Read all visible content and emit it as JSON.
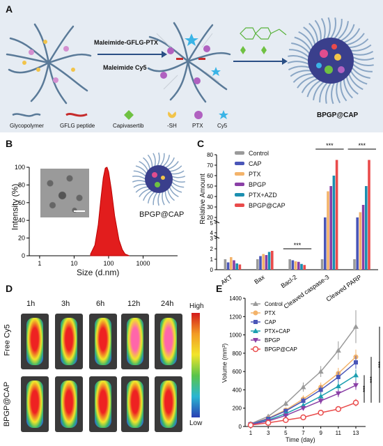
{
  "panelA": {
    "label": "A",
    "arrow1_top": "Maleimide-GFLG-PTX",
    "arrow1_bottom": "Maleimide Cy5",
    "product": "BPGP@CAP",
    "legend": [
      "Glycopolymer",
      "GFLG peptide",
      "Capivasertib",
      "-SH",
      "PTX",
      "Cy5"
    ]
  },
  "panelB": {
    "label": "B",
    "ylabel": "Intensity (%)",
    "xlabel": "Size (d.nm)",
    "yticks": [
      "0",
      "20",
      "40",
      "60",
      "80",
      "100"
    ],
    "xticks": [
      "1",
      "10",
      "100",
      "1000"
    ],
    "particle_label": "BPGP@CAP"
  },
  "panelC": {
    "label": "C",
    "ylabel": "Relative Amount",
    "yticks_upper": [
      "20",
      "30",
      "40",
      "50",
      "60",
      "70",
      "80"
    ],
    "yticks_mid": [
      "4",
      "5"
    ],
    "yticks_lower": [
      "0",
      "1",
      "2",
      "3"
    ],
    "categories": [
      "AKT",
      "Bax",
      "Bacl-2",
      "Cleaved caspase-3",
      "Cleaved PARP"
    ],
    "sig": [
      "***",
      "***",
      "***"
    ],
    "legend": [
      "Control",
      "CAP",
      "PTX",
      "BPGP",
      "PTX+AZD",
      "BPGP@CAP"
    ]
  },
  "panelD": {
    "label": "D",
    "times": [
      "1h",
      "3h",
      "6h",
      "12h",
      "24h"
    ],
    "rows": [
      "Free Cy5",
      "BPGP@CAP"
    ],
    "scale_high": "High",
    "scale_low": "Low"
  },
  "panelE": {
    "label": "E",
    "ylabel": "Volume (mm³)",
    "xlabel": "Time (day)",
    "yticks": [
      "0",
      "200",
      "400",
      "600",
      "800",
      "1000",
      "1200",
      "1400"
    ],
    "xticks": [
      "1",
      "3",
      "5",
      "7",
      "9",
      "11",
      "13"
    ],
    "sig": [
      "***",
      "***",
      "***"
    ],
    "legend": [
      "Control",
      "PTX",
      "CAP",
      "PTX+CAP",
      "BPGP",
      "BPGP@CAP"
    ]
  },
  "colors": {
    "control": "#9a9a9a",
    "cap": "#4a56b8",
    "ptx": "#f3b36a",
    "bpgp": "#8a3fa6",
    "ptxazd": "#1b8fb0",
    "bpgpcap": "#e94b4b",
    "panelA_bg": "#e6ecf3",
    "peak": "#e21d1d"
  },
  "chart_data": [
    {
      "type": "area",
      "panel": "B",
      "xlabel": "Size (d.nm)",
      "ylabel": "Intensity (%)",
      "x_scale": "log",
      "xlim": [
        0.5,
        10000
      ],
      "ylim": [
        0,
        100
      ],
      "x": [
        30,
        40,
        50,
        60,
        70,
        80,
        90,
        100,
        120,
        150,
        200,
        250,
        300,
        400
      ],
      "values": [
        2,
        12,
        35,
        65,
        88,
        99,
        100,
        95,
        75,
        45,
        18,
        7,
        2,
        0
      ]
    },
    {
      "type": "bar",
      "panel": "C",
      "ylabel": "Relative Amount",
      "categories": [
        "AKT",
        "Bax",
        "Bacl-2",
        "Cleaved caspase-3",
        "Cleaved PARP"
      ],
      "series": [
        {
          "name": "Control",
          "values": [
            1.0,
            1.0,
            1.0,
            1.0,
            1.0
          ]
        },
        {
          "name": "CAP",
          "values": [
            0.7,
            1.3,
            0.9,
            12,
            20
          ]
        },
        {
          "name": "PTX",
          "values": [
            1.2,
            1.5,
            0.8,
            45,
            25
          ]
        },
        {
          "name": "BPGP",
          "values": [
            0.9,
            1.4,
            0.75,
            50,
            32
          ]
        },
        {
          "name": "PTX+AZD",
          "values": [
            0.6,
            1.7,
            0.55,
            60,
            50
          ]
        },
        {
          "name": "BPGP@CAP",
          "values": [
            0.5,
            1.8,
            0.45,
            75,
            75
          ]
        }
      ]
    },
    {
      "type": "line",
      "panel": "E",
      "xlabel": "Time (day)",
      "ylabel": "Volume (mm³)",
      "ylim": [
        0,
        1400
      ],
      "x": [
        1,
        3,
        5,
        7,
        9,
        11,
        13
      ],
      "series": [
        {
          "name": "Control",
          "values": [
            30,
            110,
            250,
            430,
            600,
            830,
            1090
          ],
          "err": [
            10,
            20,
            30,
            50,
            60,
            100,
            180
          ]
        },
        {
          "name": "PTX",
          "values": [
            25,
            90,
            180,
            300,
            430,
            580,
            760
          ],
          "err": [
            8,
            15,
            25,
            40,
            50,
            60,
            80
          ]
        },
        {
          "name": "CAP",
          "values": [
            25,
            85,
            170,
            280,
            400,
            540,
            700
          ],
          "err": [
            8,
            15,
            25,
            35,
            45,
            55,
            70
          ]
        },
        {
          "name": "PTX+CAP",
          "values": [
            20,
            70,
            140,
            230,
            330,
            440,
            560
          ],
          "err": [
            8,
            12,
            20,
            30,
            40,
            50,
            60
          ]
        },
        {
          "name": "BPGP",
          "values": [
            20,
            60,
            120,
            200,
            280,
            360,
            450
          ],
          "err": [
            6,
            10,
            18,
            25,
            35,
            40,
            50
          ]
        },
        {
          "name": "BPGP@CAP",
          "values": [
            15,
            40,
            70,
            100,
            150,
            190,
            260
          ],
          "err": [
            5,
            8,
            12,
            18,
            22,
            30,
            40
          ]
        }
      ]
    }
  ]
}
